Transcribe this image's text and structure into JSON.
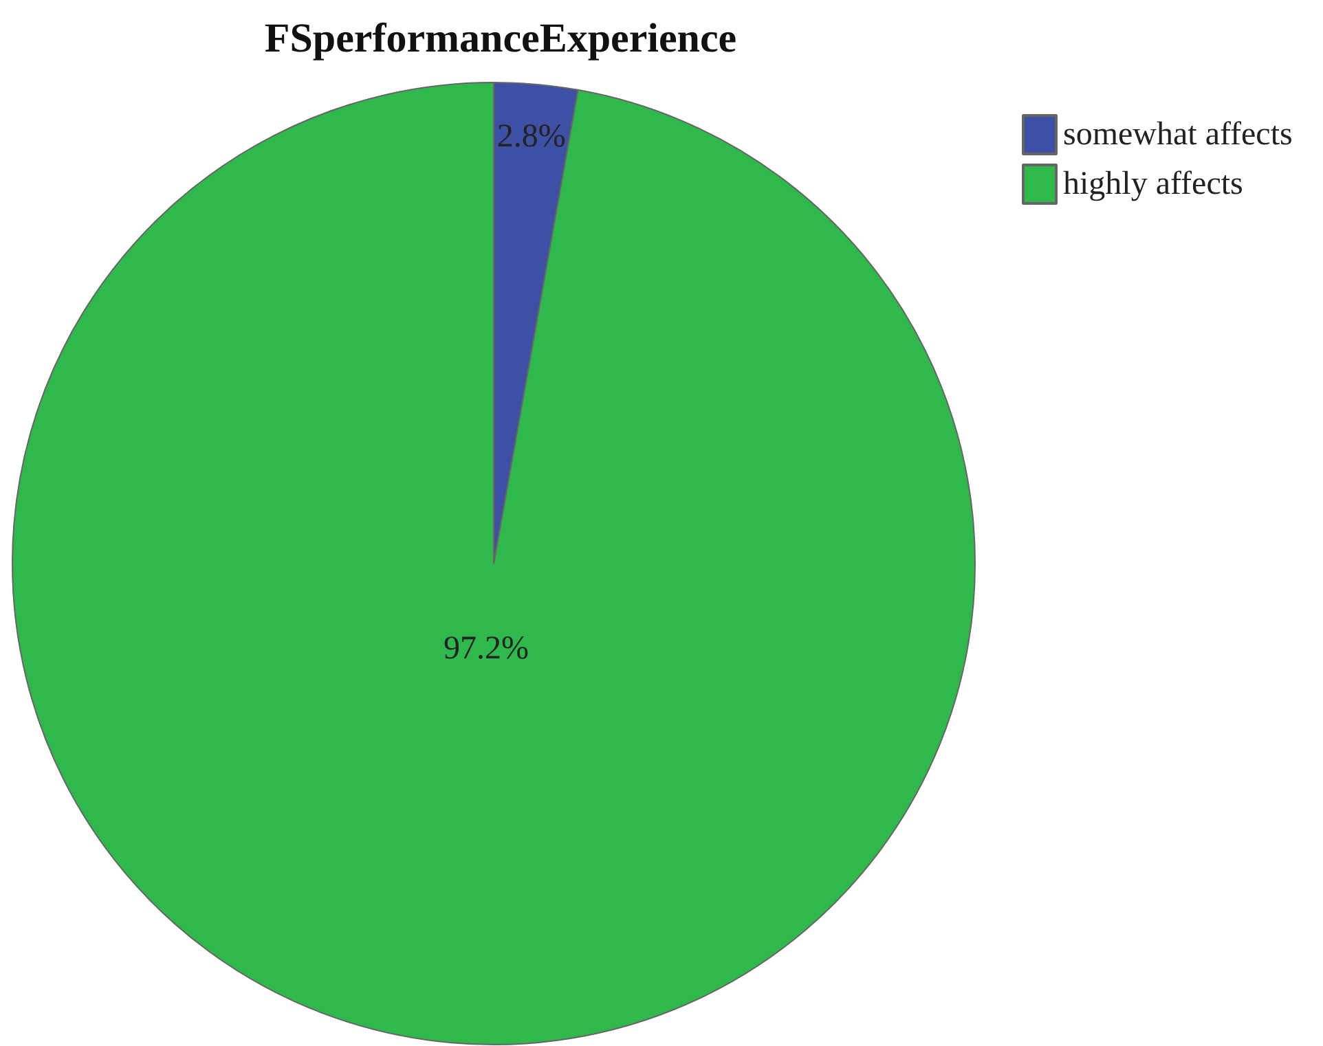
{
  "chart_data": {
    "type": "pie",
    "title": "FSperformanceExperience",
    "categories": [
      "somewhat affects",
      "highly affects"
    ],
    "values": [
      2.8,
      97.2
    ],
    "colors": [
      "#3e4fa6",
      "#2fb84b"
    ],
    "value_labels": [
      "2.8%",
      "97.2%"
    ],
    "legend": "top right"
  }
}
